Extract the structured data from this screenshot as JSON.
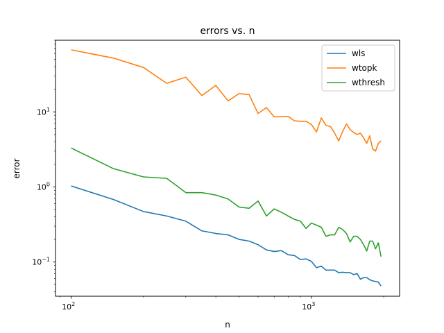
{
  "chart_data": {
    "type": "line",
    "title": "errors vs. n",
    "xlabel": "n",
    "ylabel": "error",
    "xscale": "log",
    "yscale": "log",
    "xlim": [
      86,
      2330
    ],
    "ylim": [
      0.035,
      90
    ],
    "grid": false,
    "legend_position": "top-right",
    "x_ticks": [
      {
        "value": 100,
        "base": "10",
        "exp": "2"
      },
      {
        "value": 1000,
        "base": "10",
        "exp": "3"
      }
    ],
    "y_ticks": [
      {
        "value": 0.1,
        "base": "10",
        "exp": "−1"
      },
      {
        "value": 1,
        "base": "10",
        "exp": "0"
      },
      {
        "value": 10,
        "base": "10",
        "exp": "1"
      }
    ],
    "series": [
      {
        "name": "wls",
        "color": "#1f77b4",
        "x": [
          100,
          150,
          200,
          250,
          300,
          350,
          400,
          450,
          500,
          550,
          600,
          650,
          700,
          750,
          800,
          850,
          900,
          950,
          1000,
          1050,
          1100,
          1150,
          1200,
          1250,
          1300,
          1350,
          1400,
          1450,
          1500,
          1550,
          1600,
          1650,
          1700,
          1750,
          1800,
          1850,
          1900,
          1950
        ],
        "y": [
          1.03,
          0.68,
          0.47,
          0.41,
          0.35,
          0.26,
          0.24,
          0.23,
          0.2,
          0.19,
          0.17,
          0.145,
          0.138,
          0.142,
          0.125,
          0.122,
          0.108,
          0.11,
          0.102,
          0.084,
          0.088,
          0.078,
          0.078,
          0.078,
          0.072,
          0.073,
          0.072,
          0.072,
          0.068,
          0.07,
          0.059,
          0.062,
          0.062,
          0.058,
          0.056,
          0.055,
          0.054,
          0.048
        ]
      },
      {
        "name": "wtopk",
        "color": "#ff7f0e",
        "x": [
          100,
          150,
          200,
          250,
          300,
          350,
          400,
          450,
          500,
          550,
          600,
          650,
          700,
          750,
          800,
          850,
          900,
          950,
          1000,
          1050,
          1100,
          1150,
          1200,
          1250,
          1300,
          1350,
          1400,
          1450,
          1500,
          1550,
          1600,
          1650,
          1700,
          1750,
          1800,
          1850,
          1900,
          1950
        ],
        "y": [
          67,
          52,
          39,
          24,
          29,
          16.5,
          22.5,
          14,
          17.5,
          17,
          9.5,
          11.4,
          8.6,
          8.6,
          8.7,
          7.6,
          7.5,
          7.5,
          6.8,
          5.4,
          8.3,
          6.6,
          6.4,
          5.2,
          4.1,
          5.5,
          6.9,
          5.8,
          5.3,
          5.0,
          5.2,
          4.5,
          3.8,
          4.8,
          3.2,
          3.0,
          3.8,
          4.1
        ]
      },
      {
        "name": "wthresh",
        "color": "#2ca02c",
        "x": [
          100,
          150,
          200,
          250,
          300,
          350,
          400,
          450,
          500,
          550,
          600,
          650,
          700,
          750,
          800,
          850,
          900,
          950,
          1000,
          1050,
          1100,
          1150,
          1200,
          1250,
          1300,
          1350,
          1400,
          1450,
          1500,
          1550,
          1600,
          1650,
          1700,
          1750,
          1800,
          1850,
          1900,
          1950
        ],
        "y": [
          3.3,
          1.75,
          1.36,
          1.3,
          0.84,
          0.84,
          0.78,
          0.69,
          0.54,
          0.52,
          0.65,
          0.41,
          0.51,
          0.46,
          0.41,
          0.37,
          0.35,
          0.28,
          0.33,
          0.31,
          0.29,
          0.22,
          0.23,
          0.23,
          0.29,
          0.27,
          0.24,
          0.185,
          0.22,
          0.22,
          0.2,
          0.17,
          0.14,
          0.19,
          0.19,
          0.15,
          0.18,
          0.118
        ]
      }
    ]
  }
}
